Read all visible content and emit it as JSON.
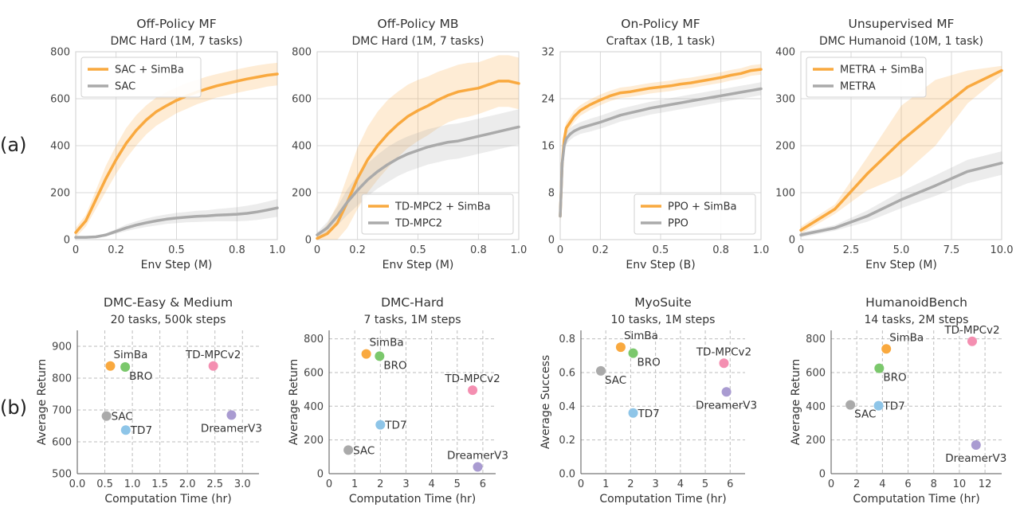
{
  "row_labels": [
    "(a)",
    "(b)"
  ],
  "chart_data": [
    {
      "type": "line",
      "title": "Off-Policy MF",
      "subtitle": "DMC Hard (1M, 7 tasks)",
      "xlabel": "Env Step (M)",
      "ylabel": "",
      "xlim": [
        0,
        1.0
      ],
      "ylim": [
        0,
        800
      ],
      "xticks": [
        0,
        0.2,
        0.5,
        0.8,
        1.0
      ],
      "xtick_labels": [
        "0",
        "0.2",
        "0.5",
        "0.8",
        "1.0"
      ],
      "yticks": [
        0,
        200,
        400,
        600,
        800
      ],
      "ytick_labels": [
        "0",
        "200",
        "400",
        "600",
        "800"
      ],
      "grid": true,
      "legend": "top-left",
      "series": [
        {
          "name": "SAC + SimBa",
          "color": "#f9a93f",
          "x": [
            0,
            0.05,
            0.1,
            0.15,
            0.2,
            0.25,
            0.3,
            0.35,
            0.4,
            0.45,
            0.5,
            0.55,
            0.6,
            0.65,
            0.7,
            0.75,
            0.8,
            0.85,
            0.9,
            0.95,
            1.0
          ],
          "y": [
            30,
            80,
            170,
            260,
            340,
            410,
            465,
            510,
            545,
            570,
            593,
            612,
            628,
            642,
            655,
            665,
            675,
            684,
            692,
            700,
            705
          ],
          "band": [
            20,
            25,
            40,
            55,
            60,
            65,
            65,
            62,
            60,
            58,
            55,
            55,
            52,
            52,
            50,
            50,
            50,
            50,
            50,
            48,
            48
          ]
        },
        {
          "name": "SAC",
          "color": "#aaaaaa",
          "x": [
            0,
            0.05,
            0.1,
            0.15,
            0.2,
            0.25,
            0.3,
            0.35,
            0.4,
            0.45,
            0.5,
            0.55,
            0.6,
            0.65,
            0.7,
            0.75,
            0.8,
            0.85,
            0.9,
            0.95,
            1.0
          ],
          "y": [
            10,
            10,
            12,
            20,
            35,
            50,
            62,
            72,
            80,
            87,
            92,
            96,
            99,
            101,
            104,
            106,
            108,
            112,
            118,
            126,
            135
          ],
          "band": [
            3,
            3,
            4,
            6,
            10,
            14,
            16,
            18,
            20,
            20,
            22,
            22,
            24,
            24,
            26,
            28,
            30,
            32,
            34,
            36,
            38
          ]
        }
      ]
    },
    {
      "type": "line",
      "title": "Off-Policy MB",
      "subtitle": "DMC Hard (1M, 7 tasks)",
      "xlabel": "Env Step (M)",
      "ylabel": "",
      "xlim": [
        0,
        1.0
      ],
      "ylim": [
        0,
        800
      ],
      "xticks": [
        0,
        0.2,
        0.5,
        0.8,
        1.0
      ],
      "xtick_labels": [
        "0",
        "0.2",
        "0.5",
        "0.8",
        "1.0"
      ],
      "yticks": [
        0,
        200,
        400,
        600,
        800
      ],
      "ytick_labels": [
        "0",
        "200",
        "400",
        "600",
        "800"
      ],
      "grid": true,
      "legend": "lower-right",
      "series": [
        {
          "name": "TD-MPC2 + SimBa",
          "color": "#f9a93f",
          "x": [
            0,
            0.05,
            0.1,
            0.15,
            0.2,
            0.25,
            0.3,
            0.35,
            0.4,
            0.45,
            0.5,
            0.55,
            0.6,
            0.65,
            0.7,
            0.75,
            0.8,
            0.85,
            0.9,
            0.95,
            1.0
          ],
          "y": [
            5,
            25,
            70,
            160,
            260,
            340,
            400,
            450,
            490,
            525,
            550,
            570,
            595,
            615,
            630,
            638,
            645,
            660,
            675,
            675,
            665
          ],
          "band": [
            10,
            40,
            80,
            110,
            130,
            140,
            145,
            145,
            140,
            135,
            130,
            125,
            120,
            115,
            115,
            115,
            110,
            110,
            110,
            110,
            110
          ]
        },
        {
          "name": "TD-MPC2",
          "color": "#aaaaaa",
          "x": [
            0,
            0.05,
            0.1,
            0.15,
            0.2,
            0.25,
            0.3,
            0.35,
            0.4,
            0.45,
            0.5,
            0.55,
            0.6,
            0.65,
            0.7,
            0.75,
            0.8,
            0.85,
            0.9,
            0.95,
            1.0
          ],
          "y": [
            20,
            50,
            100,
            160,
            210,
            255,
            290,
            320,
            345,
            365,
            380,
            395,
            405,
            415,
            420,
            430,
            440,
            450,
            460,
            470,
            480
          ],
          "band": [
            10,
            25,
            40,
            55,
            65,
            70,
            72,
            75,
            75,
            75,
            75,
            75,
            75,
            75,
            75,
            75,
            75,
            75,
            75,
            75,
            75
          ]
        }
      ]
    },
    {
      "type": "line",
      "title": "On-Policy MF",
      "subtitle": "Craftax  (1B, 1 task)",
      "xlabel": "Env Step (B)",
      "ylabel": "",
      "xlim": [
        0,
        1.0
      ],
      "ylim": [
        0,
        32
      ],
      "xticks": [
        0,
        0.2,
        0.5,
        0.8,
        1.0
      ],
      "xtick_labels": [
        "0",
        "0.2",
        "0.5",
        "0.8",
        "1.0"
      ],
      "yticks": [
        0,
        8,
        16,
        24,
        32
      ],
      "ytick_labels": [
        "0",
        "8",
        "16",
        "24",
        "32"
      ],
      "grid": true,
      "legend": "lower-right",
      "series": [
        {
          "name": "PPO + SimBa",
          "color": "#f9a93f",
          "x": [
            0,
            0.01,
            0.02,
            0.03,
            0.05,
            0.07,
            0.1,
            0.15,
            0.2,
            0.25,
            0.3,
            0.35,
            0.4,
            0.45,
            0.5,
            0.55,
            0.6,
            0.65,
            0.7,
            0.75,
            0.8,
            0.85,
            0.9,
            0.95,
            1.0
          ],
          "y": [
            4,
            13,
            17,
            19,
            20,
            21,
            22,
            23,
            23.8,
            24.5,
            25,
            25.2,
            25.5,
            25.8,
            26,
            26.2,
            26.5,
            26.7,
            27,
            27.3,
            27.6,
            28,
            28.3,
            28.8,
            29
          ],
          "band": [
            1,
            1.5,
            1.5,
            1,
            1,
            1,
            0.9,
            0.9,
            0.9,
            0.9,
            0.9,
            0.9,
            0.9,
            0.9,
            0.9,
            0.9,
            0.9,
            0.9,
            0.9,
            0.9,
            0.9,
            0.9,
            0.9,
            0.9,
            0.9
          ]
        },
        {
          "name": "PPO",
          "color": "#aaaaaa",
          "x": [
            0,
            0.01,
            0.02,
            0.03,
            0.05,
            0.07,
            0.1,
            0.15,
            0.2,
            0.25,
            0.3,
            0.35,
            0.4,
            0.45,
            0.5,
            0.55,
            0.6,
            0.65,
            0.7,
            0.75,
            0.8,
            0.85,
            0.9,
            0.95,
            1.0
          ],
          "y": [
            4,
            13,
            16,
            17.2,
            18,
            18.5,
            19,
            19.5,
            20,
            20.6,
            21.2,
            21.6,
            22,
            22.4,
            22.7,
            23,
            23.3,
            23.6,
            23.9,
            24.2,
            24.5,
            24.8,
            25.1,
            25.4,
            25.7
          ],
          "band": [
            1,
            1.2,
            1.2,
            1,
            1,
            1,
            1,
            1.1,
            1.1,
            1.1,
            1.1,
            1.1,
            1.1,
            1.1,
            1.1,
            1.1,
            1.1,
            1.1,
            1.1,
            1.1,
            1.1,
            1.1,
            1.1,
            1.1,
            1.1
          ]
        }
      ]
    },
    {
      "type": "line",
      "title": "Unsupervised MF",
      "subtitle": "DMC Humanoid (10M, 1 task)",
      "xlabel": "Env Step (M)",
      "ylabel": "",
      "xlim": [
        0,
        10.0
      ],
      "ylim": [
        0,
        400
      ],
      "xticks": [
        0,
        2.5,
        5.0,
        7.5,
        10.0
      ],
      "xtick_labels": [
        "0",
        "2.5",
        "5.0",
        "7.5",
        "10.0"
      ],
      "yticks": [
        0,
        100,
        200,
        300,
        400
      ],
      "ytick_labels": [
        "0",
        "100",
        "200",
        "300",
        "400"
      ],
      "grid": true,
      "legend": "top-left",
      "series": [
        {
          "name": "METRA + SimBa",
          "color": "#f9a93f",
          "x": [
            0,
            1.7,
            3.3,
            5.0,
            6.7,
            8.3,
            10.0
          ],
          "y": [
            20,
            65,
            140,
            210,
            270,
            325,
            360
          ],
          "band": [
            8,
            10,
            35,
            75,
            70,
            35,
            10
          ]
        },
        {
          "name": "METRA",
          "color": "#aaaaaa",
          "x": [
            0,
            1.7,
            3.3,
            5.0,
            6.7,
            8.3,
            10.0
          ],
          "y": [
            10,
            25,
            50,
            85,
            115,
            145,
            163
          ],
          "band": [
            5,
            6,
            12,
            18,
            22,
            25,
            25
          ]
        }
      ]
    },
    {
      "type": "scatter",
      "title": "DMC-Easy & Medium",
      "subtitle": "20 tasks, 500k steps",
      "xlabel": "Computation Time (hr)",
      "ylabel": "Average Return",
      "xlim": [
        0,
        3.3
      ],
      "ylim": [
        500,
        950
      ],
      "xticks": [
        0,
        0.5,
        1.0,
        1.5,
        2.0,
        2.5,
        3.0
      ],
      "xtick_labels": [
        "0.0",
        "0.5",
        "1.0",
        "1.5",
        "2.0",
        "2.5",
        "3.0"
      ],
      "yticks": [
        500,
        600,
        700,
        800,
        900
      ],
      "ytick_labels": [
        "500",
        "600",
        "700",
        "800",
        "900"
      ],
      "grid": true,
      "points": [
        {
          "label": "SimBa",
          "x": 0.6,
          "y": 838,
          "color": "#f9a93f",
          "anchor": "above-right"
        },
        {
          "label": "BRO",
          "x": 0.87,
          "y": 835,
          "color": "#7bc86c",
          "anchor": "below-right"
        },
        {
          "label": "TD-MPCv2",
          "x": 2.47,
          "y": 838,
          "color": "#f48fb1",
          "anchor": "above"
        },
        {
          "label": "SAC",
          "x": 0.53,
          "y": 681,
          "color": "#aaaaaa",
          "anchor": "right"
        },
        {
          "label": "TD7",
          "x": 0.88,
          "y": 637,
          "color": "#8ec5e8",
          "anchor": "right"
        },
        {
          "label": "DreamerV3",
          "x": 2.8,
          "y": 684,
          "color": "#a99bd1",
          "anchor": "below"
        }
      ]
    },
    {
      "type": "scatter",
      "title": "DMC-Hard",
      "subtitle": "7 tasks, 1M steps",
      "xlabel": "Computation Time (hr)",
      "ylabel": "Average Return",
      "xlim": [
        0,
        6.5
      ],
      "ylim": [
        0,
        850
      ],
      "xticks": [
        0,
        1,
        2,
        3,
        4,
        5,
        6
      ],
      "xtick_labels": [
        "0",
        "1",
        "2",
        "3",
        "4",
        "5",
        "6"
      ],
      "yticks": [
        0,
        200,
        400,
        600,
        800
      ],
      "ytick_labels": [
        "0",
        "200",
        "400",
        "600",
        "800"
      ],
      "grid": true,
      "points": [
        {
          "label": "SimBa",
          "x": 1.45,
          "y": 710,
          "color": "#f9a93f",
          "anchor": "above-right"
        },
        {
          "label": "BRO",
          "x": 1.97,
          "y": 697,
          "color": "#7bc86c",
          "anchor": "below-right"
        },
        {
          "label": "TD-MPCv2",
          "x": 5.6,
          "y": 495,
          "color": "#f48fb1",
          "anchor": "above"
        },
        {
          "label": "SAC",
          "x": 0.75,
          "y": 140,
          "color": "#aaaaaa",
          "anchor": "right"
        },
        {
          "label": "TD7",
          "x": 2.0,
          "y": 290,
          "color": "#8ec5e8",
          "anchor": "right"
        },
        {
          "label": "DreamerV3",
          "x": 5.8,
          "y": 40,
          "color": "#a99bd1",
          "anchor": "above"
        }
      ]
    },
    {
      "type": "scatter",
      "title": "MyoSuite",
      "subtitle": "10 tasks, 1M steps",
      "xlabel": "Computation Time (hr)",
      "ylabel": "Average Success",
      "xlim": [
        0,
        6.6
      ],
      "ylim": [
        0,
        0.85
      ],
      "xticks": [
        0,
        1,
        2,
        3,
        4,
        5,
        6
      ],
      "xtick_labels": [
        "0",
        "1",
        "2",
        "3",
        "4",
        "5",
        "6"
      ],
      "yticks": [
        0,
        0.2,
        0.4,
        0.6,
        0.8
      ],
      "ytick_labels": [
        "0.0",
        "0.2",
        "0.4",
        "0.6",
        "0.8"
      ],
      "grid": true,
      "points": [
        {
          "label": "SimBa",
          "x": 1.6,
          "y": 0.75,
          "color": "#f9a93f",
          "anchor": "above-right"
        },
        {
          "label": "BRO",
          "x": 2.1,
          "y": 0.715,
          "color": "#7bc86c",
          "anchor": "below-right"
        },
        {
          "label": "TD-MPCv2",
          "x": 5.75,
          "y": 0.655,
          "color": "#f48fb1",
          "anchor": "above"
        },
        {
          "label": "SAC",
          "x": 0.8,
          "y": 0.61,
          "color": "#aaaaaa",
          "anchor": "below-right"
        },
        {
          "label": "TD7",
          "x": 2.1,
          "y": 0.36,
          "color": "#8ec5e8",
          "anchor": "right"
        },
        {
          "label": "DreamerV3",
          "x": 5.85,
          "y": 0.485,
          "color": "#a99bd1",
          "anchor": "below"
        }
      ]
    },
    {
      "type": "scatter",
      "title": "HumanoidBench",
      "subtitle": "14 tasks, 2M steps",
      "xlabel": "Computation Time (hr)",
      "ylabel": "Average Return",
      "xlim": [
        0,
        13.3
      ],
      "ylim": [
        0,
        850
      ],
      "xticks": [
        0,
        2,
        4,
        6,
        8,
        10,
        12
      ],
      "xtick_labels": [
        "0",
        "2",
        "4",
        "6",
        "8",
        "10",
        "12"
      ],
      "yticks": [
        0,
        200,
        400,
        600,
        800
      ],
      "ytick_labels": [
        "0",
        "200",
        "400",
        "600",
        "800"
      ],
      "grid": true,
      "points": [
        {
          "label": "SimBa",
          "x": 4.3,
          "y": 740,
          "color": "#f9a93f",
          "anchor": "above-right"
        },
        {
          "label": "BRO",
          "x": 3.75,
          "y": 625,
          "color": "#7bc86c",
          "anchor": "below-right"
        },
        {
          "label": "TD-MPCv2",
          "x": 11.0,
          "y": 785,
          "color": "#f48fb1",
          "anchor": "above"
        },
        {
          "label": "SAC",
          "x": 1.5,
          "y": 408,
          "color": "#aaaaaa",
          "anchor": "below-right"
        },
        {
          "label": "TD7",
          "x": 3.7,
          "y": 403,
          "color": "#8ec5e8",
          "anchor": "right"
        },
        {
          "label": "DreamerV3",
          "x": 11.3,
          "y": 170,
          "color": "#a99bd1",
          "anchor": "below"
        }
      ]
    }
  ]
}
